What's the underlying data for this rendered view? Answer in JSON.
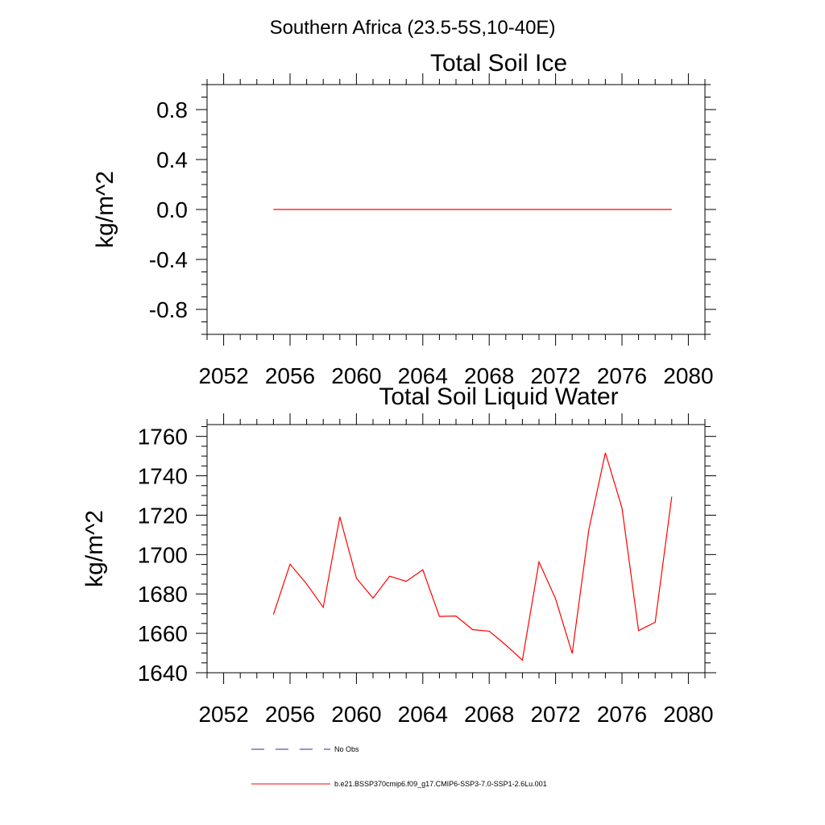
{
  "page_title": "Southern Africa (23.5-5S,10-40E)",
  "legend": {
    "items": [
      {
        "label": "No Obs",
        "color": "#2b2f8f",
        "style": "dashed"
      },
      {
        "label": "b.e21.BSSP370cmip6.f09_g17.CMIP6-SSP3-7.0-SSP1-2.6Lu.001",
        "color": "#ff0000",
        "style": "solid"
      }
    ]
  },
  "chart_data": [
    {
      "type": "line",
      "title": "Total Soil Ice",
      "ylabel": "kg/m^2",
      "xlabel": "",
      "xlim": [
        2051,
        2081
      ],
      "ylim": [
        -1.0,
        1.0
      ],
      "xticks": [
        "2052",
        "2056",
        "2060",
        "2064",
        "2068",
        "2072",
        "2076",
        "2080"
      ],
      "yticks": [
        "-0.8",
        "-0.4",
        "0.0",
        "0.4",
        "0.8"
      ],
      "grid": false,
      "series": [
        {
          "name": "b.e21.BSSP370cmip6.f09_g17.CMIP6-SSP3-7.0-SSP1-2.6Lu.001",
          "color": "#ff0000",
          "x": [
            2055,
            2056,
            2057,
            2058,
            2059,
            2060,
            2061,
            2062,
            2063,
            2064,
            2065,
            2066,
            2067,
            2068,
            2069,
            2070,
            2071,
            2072,
            2073,
            2074,
            2075,
            2076,
            2077,
            2078,
            2079
          ],
          "y": [
            0,
            0,
            0,
            0,
            0,
            0,
            0,
            0,
            0,
            0,
            0,
            0,
            0,
            0,
            0,
            0,
            0,
            0,
            0,
            0,
            0,
            0,
            0,
            0,
            0
          ]
        }
      ]
    },
    {
      "type": "line",
      "title": "Total Soil Liquid Water",
      "ylabel": "kg/m^2",
      "xlabel": "",
      "xlim": [
        2051,
        2081
      ],
      "ylim": [
        1640,
        1766
      ],
      "xticks": [
        "2052",
        "2056",
        "2060",
        "2064",
        "2068",
        "2072",
        "2076",
        "2080"
      ],
      "yticks": [
        "1640",
        "1660",
        "1680",
        "1700",
        "1720",
        "1740",
        "1760"
      ],
      "grid": false,
      "series": [
        {
          "name": "b.e21.BSSP370cmip6.f09_g17.CMIP6-SSP3-7.0-SSP1-2.6Lu.001",
          "color": "#ff0000",
          "x": [
            2055,
            2056,
            2057,
            2058,
            2059,
            2060,
            2061,
            2062,
            2063,
            2064,
            2065,
            2066,
            2067,
            2068,
            2069,
            2070,
            2071,
            2072,
            2073,
            2074,
            2075,
            2076,
            2077,
            2078,
            2079
          ],
          "y": [
            1669.6,
            1695.1,
            1685.1,
            1673.2,
            1719.1,
            1688.0,
            1677.9,
            1689.0,
            1686.4,
            1692.3,
            1668.6,
            1668.8,
            1661.9,
            1661.1,
            1654.1,
            1646.4,
            1696.3,
            1677.5,
            1649.8,
            1712.5,
            1751.7,
            1723.7,
            1661.4,
            1665.6,
            1729.4
          ]
        }
      ]
    }
  ]
}
